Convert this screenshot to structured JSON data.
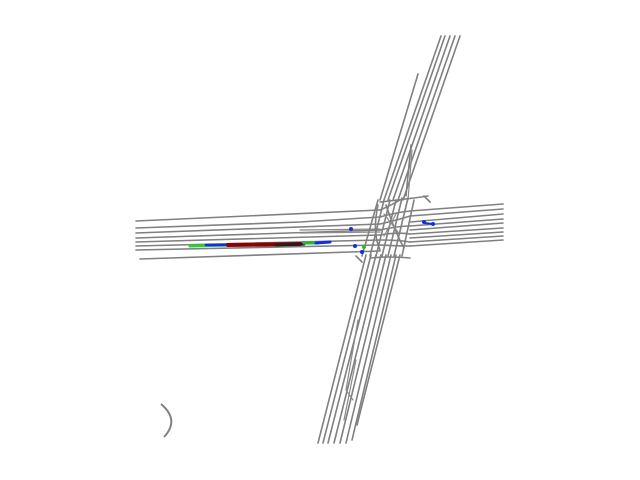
{
  "scene": {
    "background": "#ffffff",
    "colors": {
      "lane": "#808080",
      "history_trajectory": "#2ecc40",
      "agent_blue": "#1030e0",
      "prediction_red": "#8b0000",
      "prediction_dark": "#2a1a1a",
      "endpoint_green": "#22bb33"
    },
    "elements": [
      "lane-network",
      "trajectory",
      "agents",
      "curve-marker"
    ]
  }
}
